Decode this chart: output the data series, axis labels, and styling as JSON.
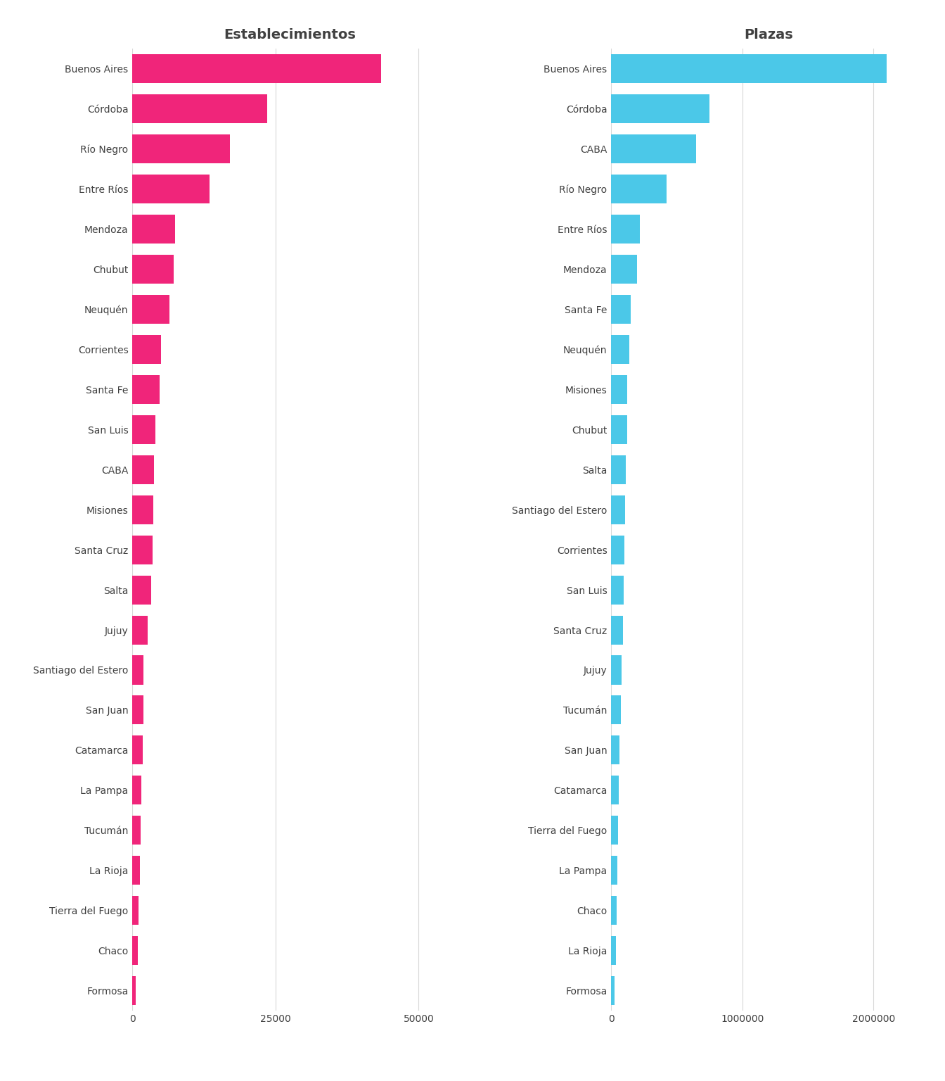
{
  "establecimientos_provincias": [
    "Buenos Aires",
    "Córdoba",
    "Río Negro",
    "Entre Ríos",
    "Mendoza",
    "Chubut",
    "Neuquén",
    "Corrientes",
    "Santa Fe",
    "San Luis",
    "CABA",
    "Misiones",
    "Santa Cruz",
    "Salta",
    "Jujuy",
    "Santiago del Estero",
    "San Juan",
    "Catamarca",
    "La Pampa",
    "Tucumán",
    "La Rioja",
    "Tierra del Fuego",
    "Chaco",
    "Formosa"
  ],
  "establecimientos_values": [
    43500,
    23500,
    17000,
    13500,
    7500,
    7200,
    6500,
    5000,
    4800,
    4000,
    3800,
    3700,
    3500,
    3300,
    2700,
    2000,
    1900,
    1800,
    1600,
    1500,
    1300,
    1100,
    1000,
    600
  ],
  "plazas_provincias": [
    "Buenos Aires",
    "Córdoba",
    "CABA",
    "Río Negro",
    "Entre Ríos",
    "Mendoza",
    "Santa Fe",
    "Neuquén",
    "Misiones",
    "Chubut",
    "Salta",
    "Santiago del Estero",
    "Corrientes",
    "San Luis",
    "Santa Cruz",
    "Jujuy",
    "Tucumán",
    "San Juan",
    "Catamarca",
    "Tierra del Fuego",
    "La Pampa",
    "Chaco",
    "La Rioja",
    "Formosa"
  ],
  "plazas_values": [
    2100000,
    750000,
    650000,
    420000,
    220000,
    195000,
    150000,
    140000,
    125000,
    120000,
    110000,
    108000,
    102000,
    98000,
    92000,
    78000,
    72000,
    62000,
    58000,
    52000,
    48000,
    43000,
    38000,
    28000
  ],
  "bar_color_estab": "#F0257A",
  "bar_color_plazas": "#4BC8E8",
  "title_estab": "Establecimientos",
  "title_plazas": "Plazas",
  "background_color": "#FFFFFF",
  "grid_color": "#D8D8D8",
  "text_color": "#404040",
  "title_fontsize": 14,
  "tick_fontsize": 10,
  "label_fontsize": 10,
  "xlim_estab": [
    0,
    55000
  ],
  "xticks_estab": [
    0,
    25000,
    50000
  ],
  "xtick_labels_estab": [
    "0",
    "25000",
    "50000"
  ],
  "xlim_plazas": [
    0,
    2400000
  ],
  "xticks_plazas": [
    0,
    1000000,
    2000000
  ],
  "xtick_labels_plazas": [
    "0",
    "1000000",
    "2000000"
  ]
}
